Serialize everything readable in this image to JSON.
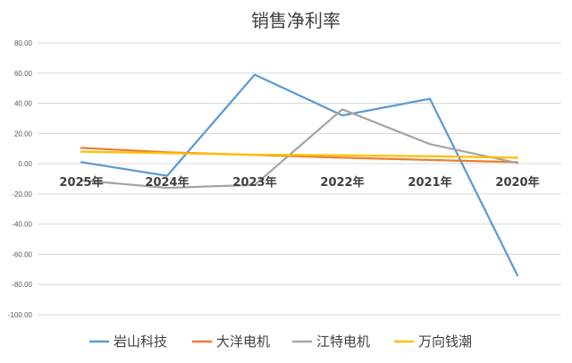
{
  "chart_data": {
    "type": "line",
    "title": "销售净利率",
    "categories": [
      "2025年",
      "2024年",
      "2023年",
      "2022年",
      "2021年",
      "2020年"
    ],
    "y_ticks": [
      "80.00",
      "60.00",
      "40.00",
      "20.00",
      "0.00",
      "-20.00",
      "-40.00",
      "-60.00",
      "-80.00",
      "-100.00"
    ],
    "ylim": [
      -100,
      80
    ],
    "grid": true,
    "legend_position": "bottom",
    "series": [
      {
        "name": "岩山科技",
        "color": "#5b9bd5",
        "values": [
          1,
          -8,
          59,
          32,
          43,
          -74
        ]
      },
      {
        "name": "大洋电机",
        "color": "#ed7d31",
        "values": [
          10.5,
          7.5,
          5.8,
          4,
          2.5,
          1
        ]
      },
      {
        "name": "江特电机",
        "color": "#a5a5a5",
        "values": [
          -11,
          -16,
          -14,
          36,
          13,
          0.5
        ]
      },
      {
        "name": "万向钱潮",
        "color": "#ffc000",
        "values": [
          8,
          7,
          6,
          5.5,
          5,
          4
        ]
      }
    ]
  }
}
